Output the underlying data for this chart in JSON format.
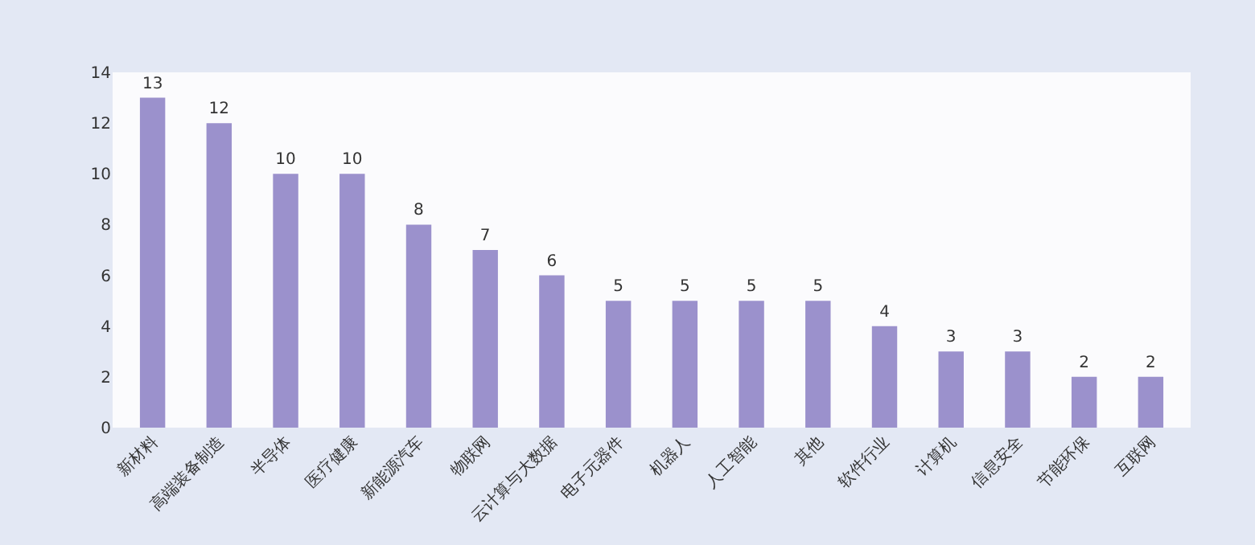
{
  "chart_data": {
    "type": "bar",
    "categories": [
      "新材料",
      "高端装备制造",
      "半导体",
      "医疗健康",
      "新能源汽车",
      "物联网",
      "云计算与大数据",
      "电子元器件",
      "机器人",
      "人工智能",
      "其他",
      "软件行业",
      "计算机",
      "信息安全",
      "节能环保",
      "互联网"
    ],
    "values": [
      13,
      12,
      10,
      10,
      8,
      7,
      6,
      5,
      5,
      5,
      5,
      4,
      3,
      3,
      2,
      2
    ],
    "color": "#9b91cc",
    "ylim": [
      0,
      14
    ],
    "yticks": [
      0,
      2,
      4,
      6,
      8,
      10,
      12,
      14
    ],
    "data_labels": true
  }
}
